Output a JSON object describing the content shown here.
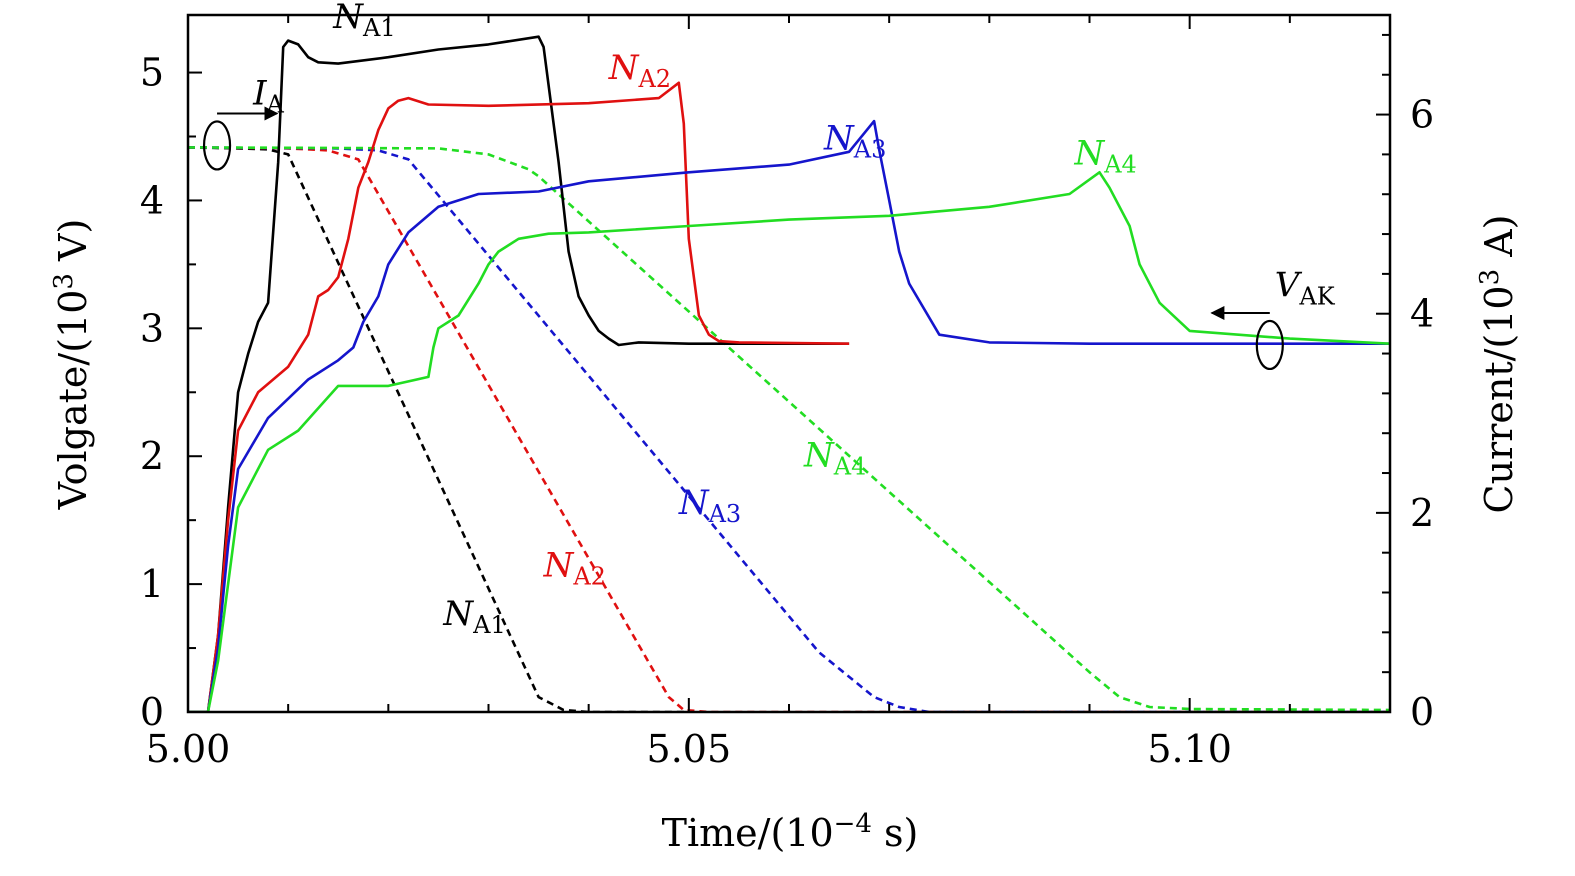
{
  "chart_data": {
    "type": "line",
    "xlabel": "Time/(10^-4 s)",
    "xlabel_parts": {
      "pre": "Time/(10",
      "sup": "−4",
      "post": " s)"
    },
    "ylabel_left_parts": {
      "pre": "Volgate/(10",
      "sup": "3",
      "post": " V)"
    },
    "ylabel_right_parts": {
      "pre": "Current/(10",
      "sup": "3",
      "post": " A)"
    },
    "xlim": [
      5.0,
      5.12
    ],
    "ylim_left": [
      0,
      5.45
    ],
    "ylim_right": [
      0,
      7.0
    ],
    "x_ticks": [
      "5.00",
      "5.05",
      "5.10"
    ],
    "y_left_ticks": [
      "0",
      "1",
      "2",
      "3",
      "4",
      "5"
    ],
    "y_right_ticks": [
      "0",
      "2",
      "4",
      "6"
    ],
    "grid": false,
    "voltage_series": [
      {
        "name": "N_A1",
        "color": "#000000",
        "axis": "left",
        "style": "solid",
        "x": [
          5.0,
          5.002,
          5.003,
          5.004,
          5.005,
          5.006,
          5.007,
          5.008,
          5.009,
          5.0095,
          5.01,
          5.011,
          5.012,
          5.013,
          5.015,
          5.02,
          5.025,
          5.03,
          5.035,
          5.0355,
          5.036,
          5.037,
          5.038,
          5.039,
          5.04,
          5.041,
          5.042,
          5.043,
          5.045,
          5.05,
          5.066
        ],
        "y": [
          0.0,
          0.0,
          0.6,
          1.6,
          2.5,
          2.8,
          3.05,
          3.2,
          4.3,
          5.2,
          5.25,
          5.22,
          5.12,
          5.08,
          5.07,
          5.12,
          5.18,
          5.22,
          5.28,
          5.2,
          4.9,
          4.3,
          3.6,
          3.25,
          3.1,
          2.98,
          2.92,
          2.87,
          2.89,
          2.88,
          2.88
        ]
      },
      {
        "name": "N_A2",
        "color": "#e01010",
        "axis": "left",
        "style": "solid",
        "x": [
          5.0,
          5.002,
          5.003,
          5.004,
          5.005,
          5.007,
          5.01,
          5.012,
          5.013,
          5.014,
          5.015,
          5.016,
          5.017,
          5.018,
          5.019,
          5.02,
          5.021,
          5.022,
          5.024,
          5.03,
          5.04,
          5.047,
          5.049,
          5.0495,
          5.05,
          5.051,
          5.052,
          5.053,
          5.055,
          5.066
        ],
        "y": [
          0.0,
          0.0,
          0.6,
          1.5,
          2.2,
          2.5,
          2.7,
          2.95,
          3.25,
          3.3,
          3.4,
          3.7,
          4.1,
          4.3,
          4.55,
          4.72,
          4.78,
          4.8,
          4.75,
          4.74,
          4.76,
          4.8,
          4.92,
          4.6,
          3.7,
          3.1,
          2.95,
          2.9,
          2.89,
          2.88
        ]
      },
      {
        "name": "N_A3",
        "color": "#1515cc",
        "axis": "left",
        "style": "solid",
        "x": [
          5.0,
          5.002,
          5.003,
          5.004,
          5.005,
          5.008,
          5.012,
          5.015,
          5.0165,
          5.0175,
          5.019,
          5.02,
          5.022,
          5.025,
          5.029,
          5.035,
          5.04,
          5.05,
          5.06,
          5.066,
          5.0685,
          5.069,
          5.07,
          5.071,
          5.072,
          5.075,
          5.08,
          5.09,
          5.1,
          5.11,
          5.12
        ],
        "y": [
          0.0,
          0.0,
          0.5,
          1.3,
          1.9,
          2.3,
          2.6,
          2.75,
          2.85,
          3.05,
          3.25,
          3.5,
          3.75,
          3.95,
          4.05,
          4.07,
          4.15,
          4.22,
          4.28,
          4.38,
          4.62,
          4.4,
          4.0,
          3.6,
          3.35,
          2.95,
          2.89,
          2.88,
          2.88,
          2.88,
          2.88
        ]
      },
      {
        "name": "N_A4",
        "color": "#22dd22",
        "axis": "left",
        "style": "solid",
        "x": [
          5.0,
          5.002,
          5.003,
          5.004,
          5.005,
          5.008,
          5.011,
          5.015,
          5.02,
          5.024,
          5.0245,
          5.025,
          5.027,
          5.029,
          5.03,
          5.031,
          5.033,
          5.036,
          5.04,
          5.05,
          5.06,
          5.07,
          5.08,
          5.088,
          5.091,
          5.092,
          5.094,
          5.095,
          5.097,
          5.1,
          5.11,
          5.12
        ],
        "y": [
          0.0,
          0.0,
          0.4,
          1.0,
          1.6,
          2.05,
          2.2,
          2.55,
          2.55,
          2.62,
          2.85,
          3.0,
          3.1,
          3.35,
          3.5,
          3.6,
          3.7,
          3.74,
          3.75,
          3.8,
          3.85,
          3.88,
          3.95,
          4.05,
          4.22,
          4.1,
          3.8,
          3.5,
          3.2,
          2.98,
          2.92,
          2.88
        ]
      }
    ],
    "current_series": [
      {
        "name": "N_A1",
        "color": "#000000",
        "axis": "right",
        "style": "dashed",
        "x": [
          5.0,
          5.005,
          5.008,
          5.01,
          5.035,
          5.0375,
          5.04,
          5.05
        ],
        "y": [
          5.67,
          5.66,
          5.65,
          5.6,
          0.15,
          0.02,
          0.0,
          0.0
        ]
      },
      {
        "name": "N_A2",
        "color": "#e01010",
        "axis": "right",
        "style": "dashed",
        "x": [
          5.0,
          5.01,
          5.014,
          5.017,
          5.048,
          5.0495,
          5.052,
          5.12
        ],
        "y": [
          5.67,
          5.66,
          5.64,
          5.55,
          0.15,
          0.02,
          0.0,
          0.0
        ]
      },
      {
        "name": "N_A3",
        "color": "#1515cc",
        "axis": "right",
        "style": "dashed",
        "x": [
          5.0,
          5.015,
          5.019,
          5.022,
          5.063,
          5.0685,
          5.071,
          5.074,
          5.12
        ],
        "y": [
          5.67,
          5.66,
          5.64,
          5.55,
          0.6,
          0.15,
          0.05,
          0.0,
          0.0
        ]
      },
      {
        "name": "N_A4",
        "color": "#22dd22",
        "axis": "right",
        "style": "dashed",
        "x": [
          5.0,
          5.025,
          5.03,
          5.034,
          5.035,
          5.09,
          5.093,
          5.096,
          5.1,
          5.12
        ],
        "y": [
          5.67,
          5.66,
          5.6,
          5.45,
          5.38,
          0.4,
          0.15,
          0.05,
          0.03,
          0.02
        ]
      }
    ],
    "annotations": [
      {
        "main": "N",
        "sub": "A1",
        "color": "#000000",
        "x": 5.0145,
        "y": 5.35,
        "axis": "left"
      },
      {
        "main": "N",
        "sub": "A2",
        "color": "#e01010",
        "x": 5.042,
        "y": 4.95,
        "axis": "left"
      },
      {
        "main": "N",
        "sub": "A3",
        "color": "#1515cc",
        "x": 5.0635,
        "y": 4.4,
        "axis": "left"
      },
      {
        "main": "N",
        "sub": "A4",
        "color": "#22dd22",
        "x": 5.0885,
        "y": 4.28,
        "axis": "left"
      },
      {
        "main": "N",
        "sub": "A4",
        "color": "#22dd22",
        "x": 5.0615,
        "y": 1.92,
        "axis": "left"
      },
      {
        "main": "N",
        "sub": "A3",
        "color": "#1515cc",
        "x": 5.049,
        "y": 1.55,
        "axis": "left"
      },
      {
        "main": "N",
        "sub": "A2",
        "color": "#e01010",
        "x": 5.0355,
        "y": 1.06,
        "axis": "left"
      },
      {
        "main": "N",
        "sub": "A1",
        "color": "#000000",
        "x": 5.0255,
        "y": 0.68,
        "axis": "left"
      },
      {
        "main": "I",
        "sub": "A",
        "color": "#000000",
        "x": 5.0065,
        "y": 4.75,
        "axis": "left"
      },
      {
        "main": "V",
        "sub": "AK",
        "color": "#000000",
        "x": 5.1085,
        "y": 3.25,
        "axis": "left"
      }
    ]
  }
}
